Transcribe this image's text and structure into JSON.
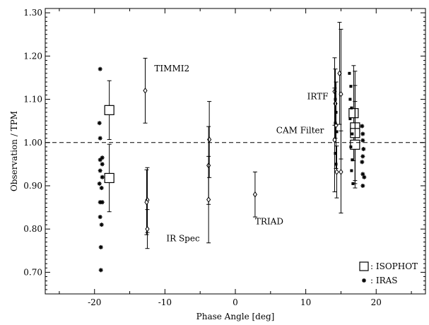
{
  "chart_data": {
    "type": "scatter",
    "xlabel": "Phase Angle [deg]",
    "ylabel": "Observation / TPM",
    "xlim": [
      -27,
      27
    ],
    "ylim": [
      0.65,
      1.31
    ],
    "xticks": [
      -20,
      -10,
      0,
      10,
      20
    ],
    "xtick_labels": [
      "-20",
      "-10",
      "0",
      "10",
      "20"
    ],
    "yticks": [
      0.7,
      0.8,
      0.9,
      1.0,
      1.1,
      1.2,
      1.3
    ],
    "ytick_labels": [
      "0.70",
      "0.80",
      "0.90",
      "1.00",
      "1.10",
      "1.20",
      "1.30"
    ],
    "reference_line": {
      "y": 1.0,
      "style": "dashed"
    },
    "grid": false,
    "legend_position": "bottom-right",
    "legend": [
      {
        "marker": "square",
        "label": ": ISOPHOT"
      },
      {
        "marker": "asterisk",
        "label": ": IRAS"
      }
    ],
    "annotations": [
      {
        "text": "TIMMI2",
        "x": -11.5,
        "y": 1.165
      },
      {
        "text": "IRTF",
        "x": 10.2,
        "y": 1.1
      },
      {
        "text": "CAM Filter",
        "x": 5.8,
        "y": 1.022
      },
      {
        "text": "IR Spec",
        "x": -9.8,
        "y": 0.772
      },
      {
        "text": "TRIAD",
        "x": 2.8,
        "y": 0.811
      }
    ],
    "series": [
      {
        "marker": "square",
        "points": [
          {
            "x": -17.9,
            "y": 1.075,
            "err": 0.068
          },
          {
            "x": -17.9,
            "y": 0.918,
            "err": 0.078
          },
          {
            "x": 16.8,
            "y": 1.068,
            "err": 0.11
          },
          {
            "x": 17.0,
            "y": 1.035,
            "err": 0.13
          },
          {
            "x": 17.0,
            "y": 1.022,
            "err": 0.11
          },
          {
            "x": 17.0,
            "y": 0.995,
            "err": 0.1
          }
        ]
      },
      {
        "marker": "diamond",
        "points": [
          {
            "x": -12.8,
            "y": 1.12,
            "err": 0.075
          },
          {
            "x": -12.5,
            "y": 0.867,
            "err": 0.075
          },
          {
            "x": -12.6,
            "y": 0.862,
            "err": 0.075
          },
          {
            "x": -12.5,
            "y": 0.8,
            "err": 0.045
          },
          {
            "x": -3.7,
            "y": 1.007,
            "err": 0.088
          },
          {
            "x": -3.8,
            "y": 0.947,
            "err": 0.09
          },
          {
            "x": -3.8,
            "y": 0.868,
            "err": 0.1
          },
          {
            "x": 2.8,
            "y": 0.88,
            "err": 0.052
          },
          {
            "x": 14.1,
            "y": 1.118,
            "err": 0.078
          },
          {
            "x": 14.2,
            "y": 1.09,
            "err": 0.08
          },
          {
            "x": 14.3,
            "y": 1.04,
            "err": 0.1
          },
          {
            "x": 14.1,
            "y": 1.006,
            "err": 0.12
          },
          {
            "x": 14.4,
            "y": 0.932,
            "err": 0.06
          },
          {
            "x": 14.8,
            "y": 1.16,
            "err": 0.118
          },
          {
            "x": 15.0,
            "y": 1.112,
            "err": 0.15
          },
          {
            "x": 15.0,
            "y": 0.932,
            "err": 0.095
          }
        ]
      },
      {
        "marker": "dot",
        "points": [
          {
            "x": 16.2,
            "y": 1.16
          },
          {
            "x": 16.4,
            "y": 1.13
          },
          {
            "x": 16.3,
            "y": 1.1
          },
          {
            "x": 16.5,
            "y": 1.08
          },
          {
            "x": 16.3,
            "y": 1.055
          },
          {
            "x": 16.6,
            "y": 1.02
          },
          {
            "x": 16.4,
            "y": 0.99
          },
          {
            "x": 16.6,
            "y": 0.96
          },
          {
            "x": 16.5,
            "y": 0.935
          },
          {
            "x": 16.7,
            "y": 0.905
          },
          {
            "x": 14.2,
            "y": 1.1
          },
          {
            "x": 14.3,
            "y": 1.07
          },
          {
            "x": 14.2,
            "y": 1.045
          },
          {
            "x": 14.4,
            "y": 1.025
          },
          {
            "x": 14.2,
            "y": 0.975
          },
          {
            "x": 14.3,
            "y": 0.95
          }
        ]
      },
      {
        "marker": "asterisk",
        "points": [
          {
            "x": -19.2,
            "y": 1.17
          },
          {
            "x": -19.3,
            "y": 1.045
          },
          {
            "x": -19.2,
            "y": 1.01
          },
          {
            "x": -18.9,
            "y": 0.965
          },
          {
            "x": -19.2,
            "y": 0.96
          },
          {
            "x": -18.9,
            "y": 0.95
          },
          {
            "x": -19.2,
            "y": 0.935
          },
          {
            "x": -18.9,
            "y": 0.92
          },
          {
            "x": -19.3,
            "y": 0.905
          },
          {
            "x": -19.0,
            "y": 0.895
          },
          {
            "x": -19.2,
            "y": 0.862
          },
          {
            "x": -18.9,
            "y": 0.862
          },
          {
            "x": -19.2,
            "y": 0.828
          },
          {
            "x": -19.0,
            "y": 0.81
          },
          {
            "x": -19.1,
            "y": 0.758
          },
          {
            "x": -19.1,
            "y": 0.705
          },
          {
            "x": 18.0,
            "y": 1.038
          },
          {
            "x": 18.1,
            "y": 1.02
          },
          {
            "x": 18.1,
            "y": 1.005
          },
          {
            "x": 18.2,
            "y": 0.985
          },
          {
            "x": 18.1,
            "y": 0.968
          },
          {
            "x": 18.0,
            "y": 0.955
          },
          {
            "x": 18.1,
            "y": 0.927
          },
          {
            "x": 18.3,
            "y": 0.92
          },
          {
            "x": 18.1,
            "y": 0.9
          }
        ]
      }
    ]
  }
}
